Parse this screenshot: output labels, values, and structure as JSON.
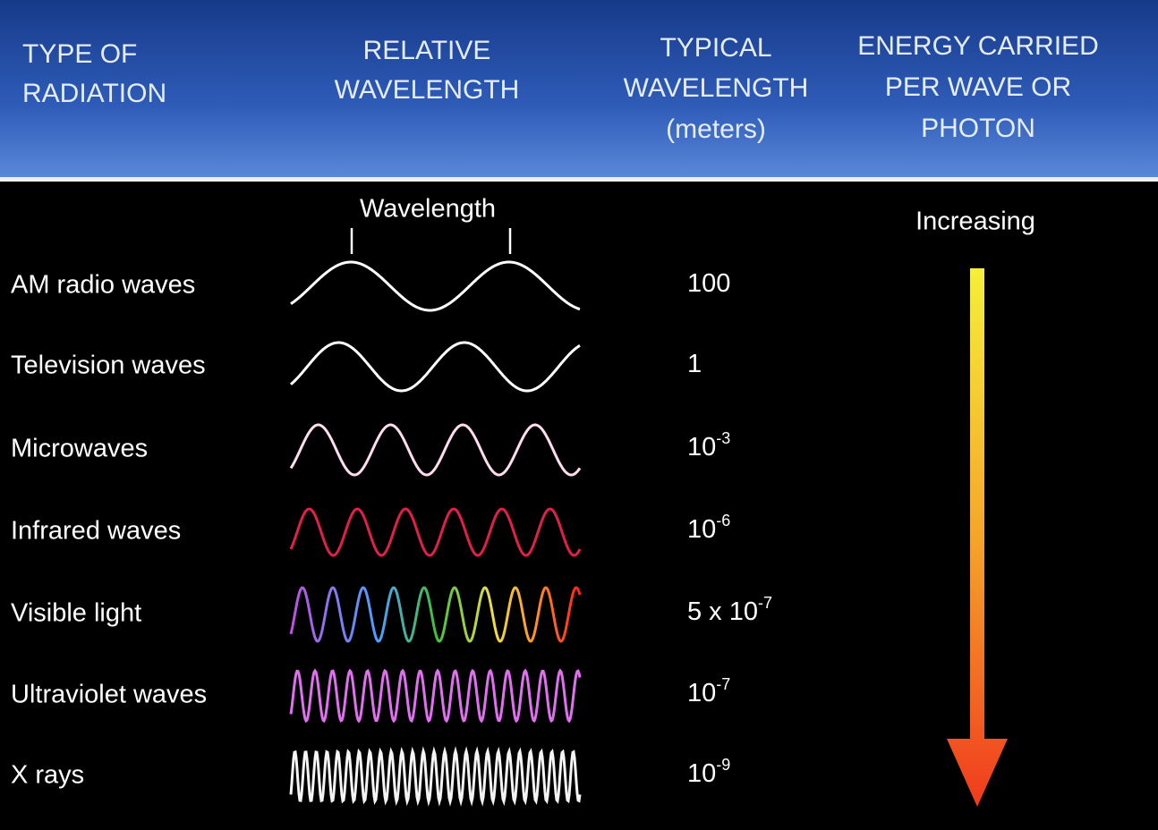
{
  "header": {
    "columns": [
      [
        "TYPE OF",
        "RADIATION"
      ],
      [
        "RELATIVE",
        "WAVELENGTH"
      ],
      [
        "TYPICAL",
        "WAVELENGTH",
        "(meters)"
      ],
      [
        "ENERGY CARRIED",
        "PER WAVE OR",
        "PHOTON"
      ]
    ]
  },
  "wavelength_label": "Wavelength",
  "energy_label": "Increasing",
  "rows": [
    {
      "type": "AM radio waves",
      "wavelength": {
        "text": "100"
      }
    },
    {
      "type": "Television waves",
      "wavelength": {
        "text": "1"
      }
    },
    {
      "type": "Microwaves",
      "wavelength": {
        "text": "10",
        "sup": "-3"
      }
    },
    {
      "type": "Infrared waves",
      "wavelength": {
        "text": "10",
        "sup": "-6"
      }
    },
    {
      "type": "Visible light",
      "wavelength": {
        "text": "5 x 10",
        "sup": "-7"
      }
    },
    {
      "type": "Ultraviolet waves",
      "wavelength": {
        "text": "10",
        "sup": "-7"
      }
    },
    {
      "type": "X rays",
      "wavelength": {
        "text": "10",
        "sup": "-9"
      }
    }
  ]
}
